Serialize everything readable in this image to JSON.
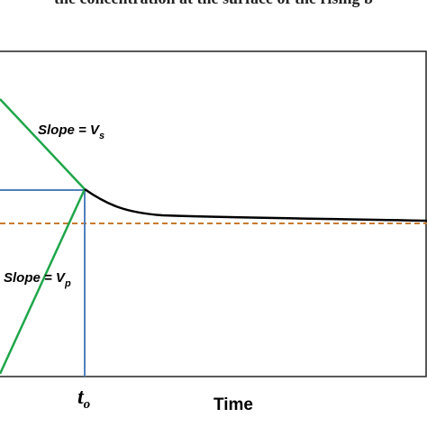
{
  "header": {
    "caption": "the concentration at the surface of the rising b"
  },
  "labels": {
    "slope_s": {
      "text": "Slope = V",
      "sub": "s"
    },
    "slope_p": {
      "text": "Slope = V",
      "sub": "p"
    },
    "t_o": {
      "text": "t",
      "sub": "o"
    },
    "x_axis": "Time"
  }
}
